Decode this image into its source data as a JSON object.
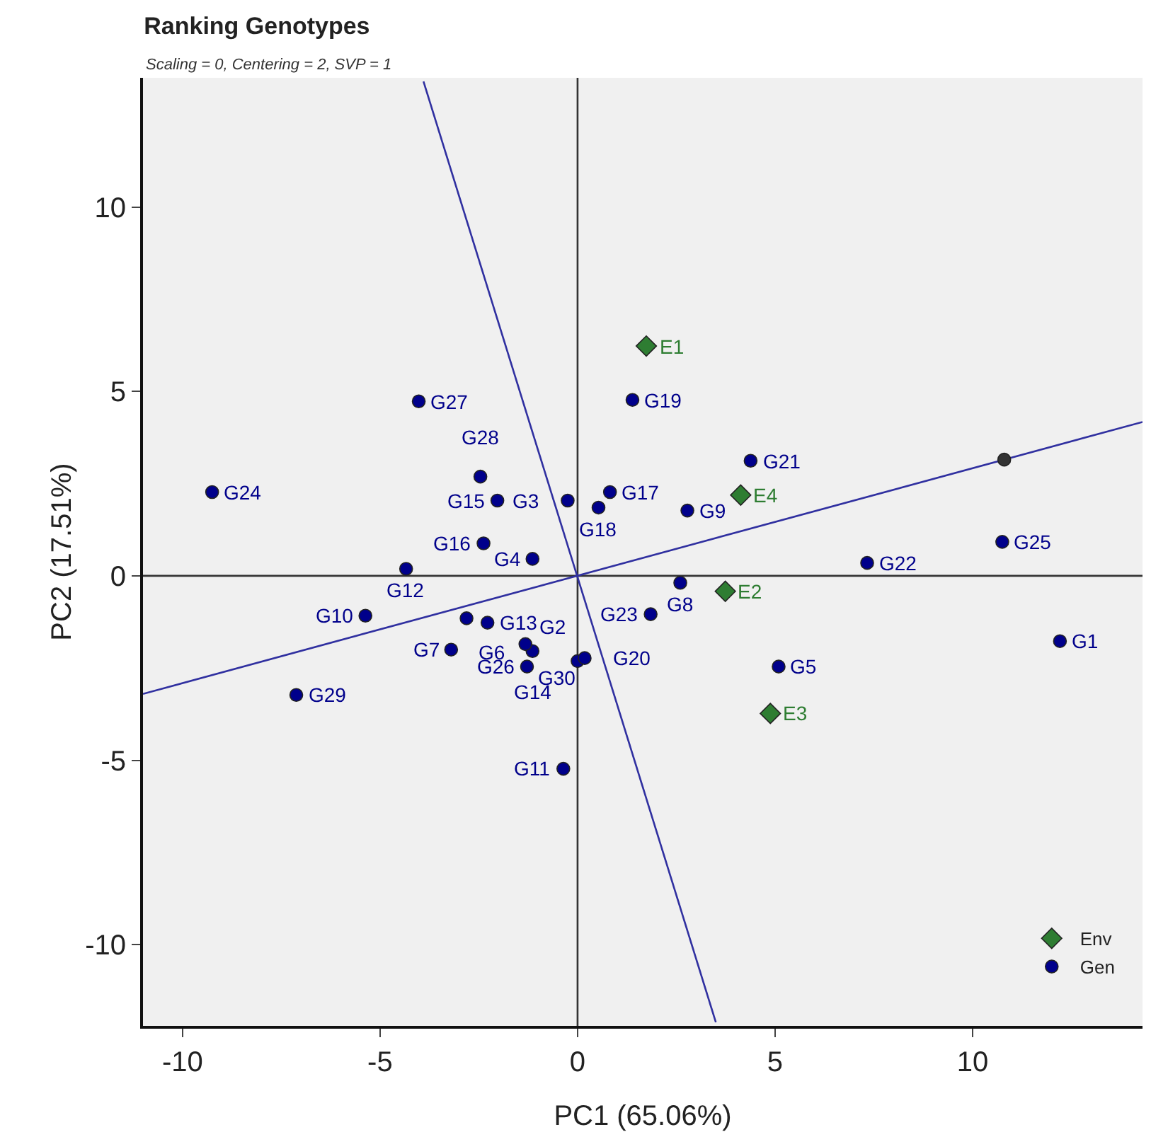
{
  "chart_data": {
    "type": "scatter",
    "title": "Ranking Genotypes",
    "subtitle": "Scaling = 0, Centering = 2, SVP = 1",
    "xlabel": "PC1 (65.06%)",
    "ylabel": "PC2 (17.51%)",
    "xlim": [
      -11,
      14.3
    ],
    "ylim": [
      -12.2,
      13.5
    ],
    "xticks": [
      -10,
      -5,
      0,
      5,
      10
    ],
    "yticks": [
      -10,
      -5,
      0,
      5,
      10
    ],
    "grid": false,
    "legend": "bottom right",
    "series": [
      {
        "type": "line",
        "color": "#333333",
        "x": [
          0,
          0
        ],
        "values": [
          -12.2,
          13.5
        ],
        "marker": "none"
      },
      {
        "type": "line",
        "color": "#333333",
        "x": [
          -11,
          14.3
        ],
        "values": [
          0,
          0
        ],
        "marker": "none"
      },
      {
        "type": "line",
        "color": "#3030a0",
        "x": [
          -11,
          14.3
        ],
        "values": [
          -3.2,
          4.17
        ],
        "marker": "none"
      },
      {
        "type": "line",
        "color": "#3030a0",
        "x": [
          -3.9,
          3.5
        ],
        "values": [
          13.4,
          -12.1
        ],
        "marker": "none"
      },
      {
        "color": "#333333",
        "x": [
          10.8
        ],
        "values": [
          3.15
        ],
        "marker": "circle"
      },
      {
        "name": "Env",
        "color": "#2e7d32",
        "marker": "diamond",
        "x": [
          1.74,
          3.74,
          4.88,
          4.13
        ],
        "values": [
          6.23,
          -0.42,
          -3.73,
          2.19
        ]
      },
      {
        "name": "Gen",
        "color": "#00008b",
        "marker": "circle",
        "x": [
          12.21,
          0.0,
          -0.25,
          -1.14,
          5.09,
          -2.81,
          -3.2,
          2.6,
          2.78,
          -5.37,
          -0.36,
          -4.34,
          -2.28,
          -1.14,
          -2.03,
          -2.38,
          0.82,
          0.53,
          1.39,
          0.18,
          4.38,
          7.33,
          1.85,
          -9.25,
          10.75,
          -1.28,
          -4.02,
          -2.46,
          -7.12,
          -1.32
        ],
        "values": [
          -1.77,
          -2.31,
          2.04,
          0.46,
          -2.46,
          -1.15,
          -2.0,
          -0.19,
          1.77,
          -1.08,
          -5.23,
          0.19,
          -1.27,
          -2.04,
          2.04,
          0.88,
          2.27,
          1.85,
          4.77,
          -2.23,
          3.12,
          0.35,
          -1.04,
          2.27,
          0.92,
          -2.46,
          4.73,
          2.69,
          -3.23,
          -1.85
        ]
      }
    ],
    "annotations": [
      {
        "text": "E1",
        "x": 1.74,
        "y": 6.23
      },
      {
        "text": "E2",
        "x": 3.74,
        "y": -0.42
      },
      {
        "text": "E3",
        "x": 4.88,
        "y": -3.73
      },
      {
        "text": "E4",
        "x": 4.13,
        "y": 2.19
      },
      {
        "text": "G1",
        "x": 12.21,
        "y": -1.77
      },
      {
        "text": "G2",
        "x": 0.0,
        "y": -2.31
      },
      {
        "text": "G3",
        "x": -0.25,
        "y": 2.04
      },
      {
        "text": "G4",
        "x": -1.14,
        "y": 0.46
      },
      {
        "text": "G5",
        "x": 5.09,
        "y": -2.46
      },
      {
        "text": "G6",
        "x": -2.81,
        "y": -1.15
      },
      {
        "text": "G7",
        "x": -3.2,
        "y": -2.0
      },
      {
        "text": "G8",
        "x": 2.6,
        "y": -0.19
      },
      {
        "text": "G9",
        "x": 2.78,
        "y": 1.77
      },
      {
        "text": "G10",
        "x": -5.37,
        "y": -1.08
      },
      {
        "text": "G11",
        "x": -0.36,
        "y": -5.23
      },
      {
        "text": "G12",
        "x": -4.34,
        "y": 0.19
      },
      {
        "text": "G13",
        "x": -2.28,
        "y": -1.27
      },
      {
        "text": "G14",
        "x": -1.14,
        "y": -2.04
      },
      {
        "text": "G15",
        "x": -2.03,
        "y": 2.04
      },
      {
        "text": "G16",
        "x": -2.38,
        "y": 0.88
      },
      {
        "text": "G17",
        "x": 0.82,
        "y": 2.27
      },
      {
        "text": "G18",
        "x": 0.53,
        "y": 1.85
      },
      {
        "text": "G19",
        "x": 1.39,
        "y": 4.77
      },
      {
        "text": "G20",
        "x": 0.18,
        "y": -2.23
      },
      {
        "text": "G21",
        "x": 4.38,
        "y": 3.12
      },
      {
        "text": "G22",
        "x": 7.33,
        "y": 0.35
      },
      {
        "text": "G23",
        "x": 1.85,
        "y": -1.04
      },
      {
        "text": "G24",
        "x": -9.25,
        "y": 2.27
      },
      {
        "text": "G25",
        "x": 10.75,
        "y": 0.92
      },
      {
        "text": "G26",
        "x": -1.28,
        "y": -2.46
      },
      {
        "text": "G27",
        "x": -4.02,
        "y": 4.73
      },
      {
        "text": "G28",
        "x": -2.46,
        "y": 2.69
      },
      {
        "text": "G29",
        "x": -7.12,
        "y": -3.23
      },
      {
        "text": "G30",
        "x": -1.32,
        "y": -1.85
      }
    ]
  }
}
